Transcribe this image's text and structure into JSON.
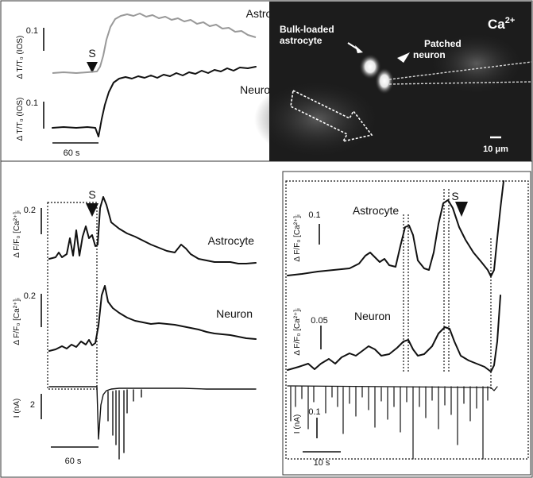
{
  "panel_a": {
    "astrocyte": "Astrocyte",
    "neuron": "Neuron",
    "stim": "S",
    "scale_a": "0.1",
    "scale_n": "0.1",
    "ylabel_a": "Δ T/T₀ (IOS)",
    "ylabel_n": "Δ T/T₀ (IOS)",
    "time_scale": "60 s"
  },
  "panel_b": {
    "ion": "Ca",
    "ion_sup": "2+",
    "bulk_loaded": "Bulk-loaded",
    "astrocyte_word": "astrocyte",
    "patched": "Patched",
    "neuron_word": "neuron",
    "scale": "10 μm",
    "colors": {
      "background": "#1c1c1c",
      "cells": "#ffffff"
    }
  },
  "panel_c": {
    "astrocyte": "Astrocyte",
    "neuron": "Neuron",
    "stim": "S",
    "scale_a": "0.2",
    "scale_n": "0.2",
    "scale_i": "2",
    "ylabel_ca": "Δ F/F₀ [Ca²⁺]ᵢ",
    "ylabel_i": "I (nA)",
    "time_scale": "60 s"
  },
  "panel_d": {
    "astrocyte": "Astrocyte",
    "neuron": "Neuron",
    "stim": "S",
    "scale_a": "0.1",
    "scale_n": "0.05",
    "scale_i": "0.1",
    "ylabel_ca": "Δ F/F₀ [Ca²⁺]ᵢ",
    "ylabel_i": "I (nA)",
    "time_scale": "10 s"
  }
}
